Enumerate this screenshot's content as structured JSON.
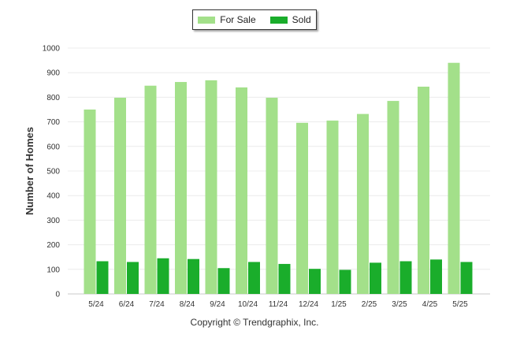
{
  "chart_data": {
    "type": "bar",
    "title": "",
    "xlabel": "",
    "ylabel": "Number of Homes",
    "ylim": [
      0,
      1000
    ],
    "yticks": [
      0,
      100,
      200,
      300,
      400,
      500,
      600,
      700,
      800,
      900,
      1000
    ],
    "categories": [
      "5/24",
      "6/24",
      "7/24",
      "8/24",
      "9/24",
      "10/24",
      "11/24",
      "12/24",
      "1/25",
      "2/25",
      "3/25",
      "4/25",
      "5/25"
    ],
    "series": [
      {
        "name": "For Sale",
        "color": "#a3e08a",
        "values": [
          750,
          798,
          847,
          862,
          869,
          840,
          798,
          696,
          705,
          732,
          785,
          843,
          940
        ]
      },
      {
        "name": "Sold",
        "color": "#1aad2b",
        "values": [
          133,
          130,
          145,
          142,
          105,
          130,
          122,
          102,
          98,
          127,
          133,
          140,
          130
        ]
      }
    ],
    "grid": true,
    "legend": "top-center"
  },
  "footer": {
    "copyright": "Copyright © Trendgraphix, Inc."
  }
}
